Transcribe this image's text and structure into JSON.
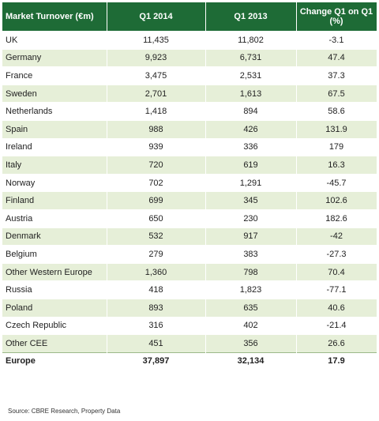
{
  "table": {
    "header": [
      "Market Turnover (€m)",
      "Q1 2014",
      "Q1 2013",
      "Change Q1 on Q1 (%)"
    ],
    "rows": [
      [
        "UK",
        "11,435",
        "11,802",
        "-3.1"
      ],
      [
        "Germany",
        "9,923",
        "6,731",
        "47.4"
      ],
      [
        "France",
        "3,475",
        "2,531",
        "37.3"
      ],
      [
        "Sweden",
        "2,701",
        "1,613",
        "67.5"
      ],
      [
        "Netherlands",
        "1,418",
        "894",
        "58.6"
      ],
      [
        "Spain",
        "988",
        "426",
        "131.9"
      ],
      [
        "Ireland",
        "939",
        "336",
        "179"
      ],
      [
        "Italy",
        "720",
        "619",
        "16.3"
      ],
      [
        "Norway",
        "702",
        "1,291",
        "-45.7"
      ],
      [
        "Finland",
        "699",
        "345",
        "102.6"
      ],
      [
        "Austria",
        "650",
        "230",
        "182.6"
      ],
      [
        "Denmark",
        "532",
        "917",
        "-42"
      ],
      [
        "Belgium",
        "279",
        "383",
        "-27.3"
      ],
      [
        "Other Western Europe",
        "1,360",
        "798",
        "70.4"
      ],
      [
        "Russia",
        "418",
        "1,823",
        "-77.1"
      ],
      [
        "Poland",
        "893",
        "635",
        "40.6"
      ],
      [
        "Czech Republic",
        "316",
        "402",
        "-21.4"
      ],
      [
        "Other CEE",
        "451",
        "356",
        "26.6"
      ],
      [
        "Europe",
        "37,897",
        "32,134",
        "17.9"
      ]
    ]
  },
  "source": "Source: CBRE Research, Property Data"
}
